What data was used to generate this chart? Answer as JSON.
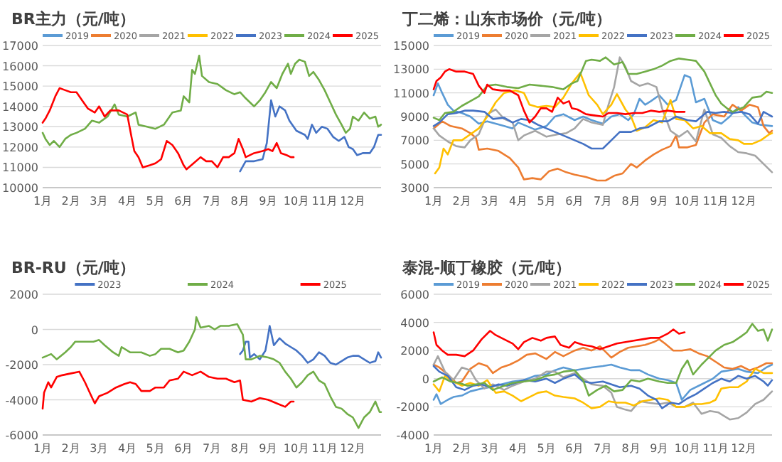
{
  "chart_data": [
    {
      "type": "line",
      "title": "BR主力（元/吨）",
      "xlim": [
        1,
        13
      ],
      "ylim": [
        10000,
        17000
      ],
      "yticks": [
        10000,
        11000,
        12000,
        13000,
        14000,
        15000,
        16000,
        17000
      ],
      "grid": "y",
      "legend": "top",
      "line_style": "solid",
      "marker": "none",
      "xticks": [
        {
          "value": 1,
          "label": "1月"
        },
        {
          "value": 2,
          "label": "2月"
        },
        {
          "value": 3,
          "label": "3月"
        },
        {
          "value": 4,
          "label": "4月"
        },
        {
          "value": 5,
          "label": "5月"
        },
        {
          "value": 6,
          "label": "6月"
        },
        {
          "value": 7,
          "label": "7月"
        },
        {
          "value": 8,
          "label": "8月"
        },
        {
          "value": 9,
          "label": "9月"
        },
        {
          "value": 10,
          "label": "10月"
        },
        {
          "value": 11,
          "label": "11月"
        },
        {
          "value": 12,
          "label": "12月"
        }
      ],
      "series": [
        {
          "name": "2019",
          "color": "#5b9bd5"
        },
        {
          "name": "2020",
          "color": "#ed7d31"
        },
        {
          "name": "2021",
          "color": "#a5a5a5"
        },
        {
          "name": "2022",
          "color": "#ffc000"
        },
        {
          "name": "2023",
          "color": "#4472c4",
          "x": [
            8.0,
            8.2,
            8.5,
            8.8,
            8.95,
            9.1,
            9.25,
            9.4,
            9.6,
            9.75,
            10.0,
            10.3,
            10.4,
            10.55,
            10.7,
            10.9,
            11.1,
            11.3,
            11.5,
            11.7,
            11.85,
            12.0,
            12.15,
            12.35,
            12.6,
            12.75,
            12.9,
            13.0
          ],
          "values": [
            10800,
            11300,
            11300,
            11400,
            12200,
            14300,
            13500,
            14000,
            13800,
            13300,
            12800,
            12600,
            12400,
            13100,
            12700,
            13000,
            12900,
            12500,
            12300,
            12500,
            12000,
            11900,
            11600,
            11700,
            11700,
            12000,
            12600,
            12600
          ]
        },
        {
          "name": "2024",
          "color": "#70ad47",
          "x": [
            1.0,
            1.1,
            1.25,
            1.4,
            1.6,
            1.8,
            2.0,
            2.2,
            2.5,
            2.75,
            3.0,
            3.3,
            3.55,
            3.7,
            4.0,
            4.3,
            4.4,
            4.7,
            5.0,
            5.3,
            5.6,
            5.9,
            6.0,
            6.2,
            6.3,
            6.4,
            6.55,
            6.65,
            6.9,
            7.2,
            7.5,
            7.8,
            8.0,
            8.2,
            8.5,
            8.7,
            8.9,
            9.1,
            9.3,
            9.5,
            9.7,
            9.8,
            9.95,
            10.1,
            10.3,
            10.45,
            10.6,
            10.8,
            11.0,
            11.2,
            11.4,
            11.6,
            11.75,
            11.9,
            12.0,
            12.2,
            12.4,
            12.6,
            12.8,
            12.9,
            13.0
          ],
          "values": [
            12700,
            12400,
            12100,
            12300,
            12000,
            12400,
            12600,
            12700,
            12900,
            13300,
            13200,
            13500,
            14100,
            13600,
            13500,
            13700,
            13100,
            13000,
            12900,
            13100,
            13700,
            13800,
            14500,
            14200,
            15800,
            15600,
            16500,
            15500,
            15200,
            15100,
            14800,
            14600,
            14700,
            14400,
            14000,
            14300,
            14700,
            15200,
            14900,
            15600,
            16100,
            15600,
            16100,
            16300,
            16200,
            15500,
            15700,
            15300,
            14800,
            14200,
            13600,
            13100,
            12700,
            12900,
            13500,
            13300,
            13700,
            13400,
            13500,
            13000,
            13100
          ]
        },
        {
          "name": "2025",
          "color": "#ff0000",
          "x": [
            1.0,
            1.1,
            1.25,
            1.45,
            1.6,
            1.8,
            2.0,
            2.2,
            2.4,
            2.6,
            2.85,
            3.0,
            3.2,
            3.4,
            3.7,
            4.0,
            4.15,
            4.25,
            4.4,
            4.55,
            4.8,
            5.0,
            5.2,
            5.4,
            5.6,
            5.8,
            6.0,
            6.1,
            6.35,
            6.6,
            6.8,
            7.0,
            7.2,
            7.4,
            7.6,
            7.8,
            7.95,
            8.1,
            8.2,
            8.5,
            8.8,
            9.0,
            9.15,
            9.3,
            9.45,
            9.65,
            9.8,
            9.9
          ],
          "values": [
            13200,
            13400,
            13800,
            14500,
            14900,
            14800,
            14700,
            14700,
            14300,
            13900,
            13700,
            14000,
            13500,
            13800,
            13800,
            13600,
            12500,
            11800,
            11500,
            11000,
            11100,
            11200,
            11400,
            12300,
            12100,
            11700,
            11100,
            10900,
            11200,
            11500,
            11300,
            11300,
            11000,
            11500,
            11500,
            11700,
            12400,
            11900,
            11500,
            11700,
            11800,
            11900,
            11800,
            12200,
            11700,
            11600,
            11500,
            11500
          ]
        }
      ]
    },
    {
      "type": "line",
      "title": "丁二烯：山东市场价（元/吨）",
      "xlim": [
        1,
        13
      ],
      "ylim": [
        3000,
        15000
      ],
      "yticks": [
        3000,
        5000,
        7000,
        9000,
        11000,
        13000,
        15000
      ],
      "grid": "y",
      "legend": "top",
      "line_style": "solid",
      "marker": "none",
      "xticks": [
        {
          "value": 1,
          "label": "1月"
        },
        {
          "value": 2,
          "label": "2月"
        },
        {
          "value": 3,
          "label": "3月"
        },
        {
          "value": 4,
          "label": "4月"
        },
        {
          "value": 5,
          "label": "5月"
        },
        {
          "value": 6,
          "label": "6月"
        },
        {
          "value": 7,
          "label": "7月"
        },
        {
          "value": 8,
          "label": "8月"
        },
        {
          "value": 9,
          "label": "9月"
        },
        {
          "value": 10,
          "label": "10月"
        },
        {
          "value": 11,
          "label": "11月"
        },
        {
          "value": 12,
          "label": "12月"
        }
      ],
      "series": [
        {
          "name": "2019",
          "color": "#5b9bd5",
          "x": [
            1.0,
            1.15,
            1.3,
            1.5,
            1.7,
            2.0,
            2.3,
            2.6,
            2.9,
            3.2,
            3.5,
            3.8,
            4.0,
            4.3,
            4.6,
            5.0,
            5.3,
            5.6,
            6.0,
            6.3,
            6.6,
            7.0,
            7.3,
            7.6,
            7.9,
            8.1,
            8.3,
            8.5,
            8.7,
            9.0,
            9.3,
            9.6,
            9.9,
            10.1,
            10.3,
            10.6,
            10.9,
            11.2,
            11.5,
            11.8,
            12.0,
            12.3,
            12.6,
            13.0
          ],
          "values": [
            10800,
            11800,
            11000,
            10000,
            9500,
            9300,
            9000,
            8400,
            8600,
            8400,
            8200,
            8000,
            8500,
            8200,
            7900,
            8200,
            9000,
            9200,
            8700,
            9000,
            8700,
            8400,
            9000,
            9200,
            8700,
            9200,
            10500,
            10000,
            10300,
            10800,
            10000,
            10400,
            12500,
            12300,
            10200,
            10500,
            8700,
            8400,
            9000,
            9800,
            9200,
            8500,
            8300,
            8200
          ]
        },
        {
          "name": "2020",
          "color": "#ed7d31",
          "x": [
            1.0,
            1.3,
            1.6,
            2.0,
            2.3,
            2.5,
            2.6,
            2.9,
            3.3,
            3.7,
            4.0,
            4.2,
            4.5,
            4.8,
            5.1,
            5.4,
            5.7,
            6.0,
            6.4,
            6.8,
            7.1,
            7.4,
            7.7,
            8.0,
            8.2,
            8.5,
            8.8,
            9.1,
            9.4,
            9.6,
            9.7,
            10.0,
            10.3,
            10.6,
            10.9,
            11.3,
            11.6,
            11.9,
            12.2,
            12.5,
            12.7,
            12.9,
            13.0
          ],
          "values": [
            8000,
            8600,
            8200,
            8000,
            7600,
            7200,
            6200,
            6300,
            6100,
            5500,
            4700,
            3700,
            3800,
            3700,
            4400,
            4600,
            4300,
            4100,
            3900,
            3600,
            3600,
            4000,
            4200,
            5000,
            4700,
            5300,
            5800,
            6200,
            6500,
            7400,
            6400,
            6400,
            6600,
            8500,
            9200,
            9000,
            10000,
            9500,
            10000,
            9800,
            8200,
            7600,
            7800
          ]
        },
        {
          "name": "2021",
          "color": "#a5a5a5",
          "x": [
            1.0,
            1.2,
            1.5,
            1.8,
            2.1,
            2.3,
            2.6,
            2.9,
            3.2,
            3.5,
            3.8,
            4.0,
            4.2,
            4.6,
            5.0,
            5.4,
            5.7,
            6.0,
            6.3,
            6.6,
            7.0,
            7.2,
            7.4,
            7.6,
            7.8,
            8.0,
            8.3,
            8.6,
            8.9,
            9.1,
            9.4,
            9.7,
            10.0,
            10.3,
            10.6,
            10.9,
            11.2,
            11.5,
            11.8,
            12.1,
            12.4,
            12.7,
            13.0
          ],
          "values": [
            8000,
            7400,
            6900,
            6500,
            6400,
            7000,
            7500,
            9200,
            9600,
            8800,
            8500,
            7000,
            7400,
            7800,
            7300,
            7500,
            7600,
            8000,
            8800,
            8500,
            8300,
            10000,
            11500,
            14000,
            13200,
            12000,
            11600,
            11800,
            11500,
            9700,
            7800,
            7300,
            7800,
            6900,
            9600,
            7500,
            7200,
            6500,
            6000,
            5900,
            5700,
            5000,
            4300
          ]
        },
        {
          "name": "2022",
          "color": "#ffc000",
          "x": [
            1.05,
            1.2,
            1.35,
            1.5,
            1.7,
            2.0,
            2.3,
            2.6,
            2.9,
            3.2,
            3.5,
            3.9,
            4.2,
            4.4,
            4.7,
            5.0,
            5.3,
            5.6,
            5.9,
            6.2,
            6.5,
            6.8,
            7.0,
            7.3,
            7.5,
            7.8,
            8.0,
            8.2,
            8.5,
            8.8,
            9.1,
            9.4,
            9.6,
            9.9,
            10.2,
            10.5,
            10.8,
            11.2,
            11.5,
            11.8,
            12.0,
            12.3,
            12.6,
            12.9,
            13.0
          ],
          "values": [
            4200,
            4700,
            6300,
            5800,
            7000,
            7000,
            7500,
            8000,
            9000,
            10200,
            11000,
            11200,
            11000,
            10000,
            9800,
            9900,
            9800,
            10600,
            11800,
            12700,
            10800,
            10000,
            9200,
            10000,
            10900,
            9600,
            9000,
            7800,
            8100,
            8700,
            8500,
            10400,
            8800,
            8700,
            8000,
            8200,
            7600,
            7600,
            7100,
            7000,
            6700,
            6700,
            7000,
            7500,
            7600
          ]
        },
        {
          "name": "2023",
          "color": "#4472c4",
          "x": [
            1.0,
            1.2,
            1.5,
            1.8,
            2.1,
            2.4,
            2.8,
            3.1,
            3.5,
            3.8,
            4.1,
            4.4,
            4.7,
            5.0,
            5.3,
            5.6,
            6.0,
            6.3,
            6.6,
            7.0,
            7.3,
            7.6,
            8.0,
            8.3,
            8.6,
            9.0,
            9.3,
            9.6,
            10.0,
            10.3,
            10.7,
            11.0,
            11.3,
            11.6,
            11.9,
            12.2,
            12.5,
            12.7,
            12.85,
            13.0
          ],
          "values": [
            8200,
            8500,
            9200,
            9300,
            9500,
            9500,
            9400,
            8800,
            8900,
            8500,
            8800,
            8700,
            8300,
            8000,
            7700,
            7400,
            7000,
            6700,
            6300,
            6300,
            7000,
            7700,
            7700,
            8000,
            8100,
            8600,
            8600,
            9000,
            8700,
            8600,
            9400,
            9300,
            9400,
            9300,
            9400,
            9200,
            8400,
            9400,
            9200,
            9000
          ]
        },
        {
          "name": "2024",
          "color": "#70ad47",
          "x": [
            1.0,
            1.2,
            1.4,
            1.7,
            2.0,
            2.3,
            2.6,
            2.9,
            3.2,
            3.6,
            4.0,
            4.4,
            4.8,
            5.2,
            5.6,
            5.9,
            6.1,
            6.4,
            6.6,
            6.9,
            7.1,
            7.4,
            7.7,
            7.9,
            8.2,
            8.5,
            8.8,
            9.1,
            9.4,
            9.7,
            10.0,
            10.3,
            10.6,
            10.8,
            11.0,
            11.2,
            11.4,
            11.6,
            11.8,
            12.0,
            12.3,
            12.6,
            12.8,
            13.0
          ],
          "values": [
            8900,
            8700,
            9300,
            9400,
            9900,
            10300,
            10700,
            11600,
            11700,
            11500,
            11400,
            11700,
            11600,
            11500,
            11300,
            11800,
            12000,
            13700,
            13800,
            13700,
            14000,
            13400,
            13600,
            12600,
            12600,
            12800,
            13000,
            13300,
            13700,
            13900,
            13800,
            13700,
            12800,
            11800,
            10800,
            10100,
            9700,
            9400,
            9600,
            9800,
            10600,
            10700,
            11100,
            11000
          ]
        },
        {
          "name": "2025",
          "color": "#ff0000",
          "x": [
            1.0,
            1.1,
            1.25,
            1.4,
            1.55,
            1.8,
            2.1,
            2.4,
            2.6,
            2.8,
            2.9,
            3.1,
            3.4,
            3.7,
            4.0,
            4.2,
            4.4,
            4.6,
            4.8,
            5.0,
            5.2,
            5.4,
            5.6,
            5.8,
            5.9,
            6.1,
            6.4,
            6.7,
            7.0,
            7.2,
            7.5,
            7.8,
            8.1,
            8.4,
            8.7,
            9.0,
            9.3,
            9.6,
            9.9
          ],
          "values": [
            11300,
            12000,
            12300,
            12800,
            13000,
            12800,
            12800,
            12600,
            11600,
            11000,
            11700,
            11300,
            11200,
            11200,
            10800,
            9500,
            8500,
            9000,
            9700,
            9700,
            9400,
            10600,
            10100,
            10300,
            9700,
            9600,
            9200,
            9100,
            9000,
            9300,
            9300,
            9200,
            9300,
            9300,
            9500,
            9400,
            9500,
            9400,
            9400
          ]
        }
      ]
    },
    {
      "type": "line",
      "title": "BR-RU（元/吨）",
      "xlim": [
        1,
        13
      ],
      "ylim": [
        -6000,
        2000
      ],
      "yticks": [
        -6000,
        -4000,
        -2000,
        0,
        2000
      ],
      "grid": "y",
      "legend": "top",
      "line_style": "solid",
      "marker": "none",
      "xticks": [
        {
          "value": 1,
          "label": "1月"
        },
        {
          "value": 2,
          "label": "2月"
        },
        {
          "value": 3,
          "label": "3月"
        },
        {
          "value": 4,
          "label": "4月"
        },
        {
          "value": 5,
          "label": "5月"
        },
        {
          "value": 6,
          "label": "6月"
        },
        {
          "value": 7,
          "label": "7月"
        },
        {
          "value": 8,
          "label": "8月"
        },
        {
          "value": 9,
          "label": "9月"
        },
        {
          "value": 10,
          "label": "10月"
        },
        {
          "value": 11,
          "label": "11月"
        },
        {
          "value": 12,
          "label": "12月"
        }
      ],
      "series": [
        {
          "name": "2023",
          "color": "#4472c4",
          "x": [
            8.0,
            8.1,
            8.2,
            8.3,
            8.35,
            8.5,
            8.7,
            8.9,
            9.0,
            9.05,
            9.2,
            9.4,
            9.6,
            9.8,
            10.0,
            10.2,
            10.4,
            10.6,
            10.8,
            11.0,
            11.2,
            11.4,
            11.6,
            11.8,
            12.0,
            12.2,
            12.4,
            12.6,
            12.8,
            12.9,
            13.0
          ],
          "values": [
            -1400,
            -1200,
            -700,
            -700,
            -1600,
            -1400,
            -1700,
            -1200,
            -300,
            200,
            -900,
            -500,
            -800,
            -1000,
            -1200,
            -1500,
            -1900,
            -1700,
            -1300,
            -1500,
            -1900,
            -2000,
            -1800,
            -1600,
            -1500,
            -1500,
            -1700,
            -1900,
            -1800,
            -1300,
            -1600
          ]
        },
        {
          "name": "2024",
          "color": "#70ad47",
          "x": [
            1.0,
            1.3,
            1.5,
            1.8,
            2.0,
            2.15,
            2.5,
            2.8,
            3.0,
            3.2,
            3.5,
            3.7,
            3.8,
            4.1,
            4.5,
            4.8,
            5.0,
            5.2,
            5.5,
            5.8,
            6.0,
            6.2,
            6.4,
            6.45,
            6.6,
            6.9,
            7.1,
            7.3,
            7.6,
            7.9,
            8.1,
            8.2,
            8.4,
            8.7,
            9.0,
            9.2,
            9.4,
            9.6,
            9.8,
            10.0,
            10.2,
            10.4,
            10.6,
            10.8,
            11.0,
            11.2,
            11.4,
            11.6,
            11.8,
            12.0,
            12.2,
            12.4,
            12.6,
            12.8,
            12.95,
            13.0
          ],
          "values": [
            -1600,
            -1400,
            -1700,
            -1300,
            -1000,
            -700,
            -700,
            -700,
            -600,
            -900,
            -1300,
            -1500,
            -1000,
            -1300,
            -1300,
            -1500,
            -1400,
            -1100,
            -1100,
            -1300,
            -1200,
            -700,
            0,
            700,
            100,
            200,
            0,
            200,
            200,
            300,
            -300,
            -1700,
            -1700,
            -1500,
            -1600,
            -1700,
            -1900,
            -2400,
            -2800,
            -3300,
            -3000,
            -2600,
            -2400,
            -2900,
            -3100,
            -3800,
            -4400,
            -4500,
            -4800,
            -5000,
            -5600,
            -5000,
            -4700,
            -4100,
            -4700,
            -4700
          ]
        },
        {
          "name": "2025",
          "color": "#ff0000",
          "x": [
            1.0,
            1.05,
            1.2,
            1.3,
            1.5,
            1.7,
            2.0,
            2.3,
            2.5,
            2.7,
            2.85,
            3.0,
            3.3,
            3.6,
            3.9,
            4.1,
            4.3,
            4.5,
            4.8,
            5.0,
            5.3,
            5.5,
            5.8,
            6.0,
            6.3,
            6.6,
            6.9,
            7.2,
            7.5,
            7.8,
            8.0,
            8.1,
            8.4,
            8.7,
            9.0,
            9.3,
            9.6,
            9.8,
            9.9
          ],
          "values": [
            -4500,
            -3600,
            -3000,
            -3300,
            -2700,
            -2600,
            -2500,
            -2400,
            -3000,
            -3700,
            -4200,
            -3800,
            -3600,
            -3300,
            -3100,
            -3000,
            -3100,
            -3500,
            -3500,
            -3300,
            -3300,
            -2900,
            -2800,
            -2400,
            -2600,
            -2400,
            -2700,
            -2800,
            -2800,
            -3000,
            -2900,
            -4000,
            -4100,
            -3900,
            -4000,
            -4200,
            -4400,
            -4100,
            -4100
          ]
        }
      ]
    },
    {
      "type": "line",
      "title": "泰混-顺丁橡胶（元/吨）",
      "xlim": [
        1,
        13
      ],
      "ylim": [
        -4000,
        6000
      ],
      "yticks": [
        -4000,
        -2000,
        0,
        2000,
        4000,
        6000
      ],
      "grid": "y",
      "legend": "top",
      "line_style": "solid",
      "marker": "none",
      "xticks": [
        {
          "value": 1,
          "label": "1月"
        },
        {
          "value": 2,
          "label": "2月"
        },
        {
          "value": 3,
          "label": "3月"
        },
        {
          "value": 4,
          "label": "4月"
        },
        {
          "value": 5,
          "label": "5月"
        },
        {
          "value": 6,
          "label": "6月"
        },
        {
          "value": 7,
          "label": "7月"
        },
        {
          "value": 8,
          "label": "8月"
        },
        {
          "value": 9,
          "label": "9月"
        },
        {
          "value": 10,
          "label": "10月"
        },
        {
          "value": 11,
          "label": "11月"
        },
        {
          "value": 12,
          "label": "12月"
        }
      ],
      "series": [
        {
          "name": "2019",
          "color": "#5b9bd5",
          "x": [
            1.0,
            1.1,
            1.25,
            1.5,
            1.7,
            2.0,
            2.3,
            2.7,
            3.0,
            3.4,
            3.8,
            4.2,
            4.6,
            5.0,
            5.3,
            5.6,
            6.0,
            6.3,
            6.6,
            7.0,
            7.3,
            7.6,
            8.0,
            8.3,
            8.6,
            9.0,
            9.3,
            9.6,
            9.8,
            10.1,
            10.5,
            10.9,
            11.2,
            11.5,
            11.8,
            12.1,
            12.5,
            12.8,
            13.0
          ],
          "values": [
            -1500,
            -1100,
            -1800,
            -1500,
            -1300,
            -1200,
            -900,
            -700,
            -600,
            -400,
            -200,
            -100,
            200,
            300,
            600,
            800,
            600,
            700,
            800,
            900,
            1000,
            800,
            600,
            600,
            300,
            0,
            -100,
            -300,
            -1500,
            -800,
            -400,
            0,
            500,
            600,
            700,
            500,
            400,
            800,
            1000
          ]
        },
        {
          "name": "2020",
          "color": "#ed7d31",
          "x": [
            1.0,
            1.2,
            1.5,
            1.8,
            2.0,
            2.3,
            2.6,
            2.9,
            3.1,
            3.4,
            3.7,
            4.0,
            4.3,
            4.6,
            5.0,
            5.3,
            5.6,
            6.0,
            6.3,
            6.6,
            6.9,
            7.1,
            7.3,
            7.6,
            7.9,
            8.2,
            8.5,
            8.8,
            9.0,
            9.2,
            9.5,
            9.8,
            10.1,
            10.4,
            10.7,
            11.0,
            11.3,
            11.6,
            11.9,
            12.2,
            12.5,
            12.8,
            13.0
          ],
          "values": [
            1000,
            800,
            300,
            -300,
            -200,
            700,
            1100,
            900,
            400,
            800,
            1000,
            1300,
            1700,
            1800,
            1400,
            1900,
            1600,
            2000,
            2200,
            2000,
            2300,
            1900,
            1500,
            1900,
            2200,
            2300,
            2400,
            2600,
            2800,
            2500,
            2000,
            2000,
            2100,
            1800,
            1600,
            1200,
            800,
            700,
            900,
            600,
            800,
            1100,
            1100
          ]
        },
        {
          "name": "2021",
          "color": "#a5a5a5",
          "x": [
            1.0,
            1.15,
            1.4,
            1.7,
            2.0,
            2.3,
            2.5,
            2.8,
            3.1,
            3.5,
            3.8,
            4.2,
            4.6,
            5.0,
            5.3,
            5.6,
            6.0,
            6.3,
            6.6,
            7.0,
            7.3,
            7.5,
            7.8,
            8.0,
            8.3,
            8.6,
            9.0,
            9.3,
            9.6,
            9.9,
            10.2,
            10.5,
            10.8,
            11.1,
            11.5,
            11.8,
            12.1,
            12.4,
            12.7,
            13.0
          ],
          "values": [
            1000,
            1600,
            500,
            -100,
            800,
            600,
            -100,
            -700,
            -400,
            -800,
            -500,
            -200,
            0,
            500,
            500,
            100,
            400,
            0,
            -400,
            -500,
            -1000,
            -2000,
            -2200,
            -2300,
            -1600,
            -1700,
            -1800,
            -1700,
            -2000,
            -2000,
            -1700,
            -2500,
            -2300,
            -2400,
            -2900,
            -2800,
            -2400,
            -1800,
            -1500,
            -900
          ]
        },
        {
          "name": "2022",
          "color": "#ffc000",
          "x": [
            1.0,
            1.2,
            1.4,
            1.7,
            2.0,
            2.3,
            2.6,
            2.9,
            3.2,
            3.5,
            3.8,
            4.1,
            4.4,
            4.7,
            5.0,
            5.3,
            5.6,
            6.0,
            6.3,
            6.6,
            6.9,
            7.2,
            7.5,
            7.8,
            8.1,
            8.4,
            8.7,
            9.0,
            9.3,
            9.6,
            9.9,
            10.2,
            10.5,
            10.8,
            11.0,
            11.2,
            11.5,
            11.8,
            12.1,
            12.4,
            12.7,
            13.0
          ],
          "values": [
            -400,
            -900,
            200,
            -200,
            -500,
            -300,
            -500,
            -100,
            -1000,
            -900,
            -1200,
            -1600,
            -1300,
            -1000,
            -900,
            -1200,
            -1300,
            -1400,
            -1700,
            -2100,
            -2000,
            -1600,
            -1700,
            -1700,
            -1900,
            -1600,
            -1500,
            -1400,
            -1500,
            -2000,
            -2000,
            -1800,
            -1800,
            -1700,
            -1500,
            -700,
            -600,
            -600,
            -200,
            700,
            400,
            400
          ]
        },
        {
          "name": "2023",
          "color": "#4472c4",
          "x": [
            1.0,
            1.2,
            1.5,
            1.8,
            2.1,
            2.4,
            2.7,
            3.0,
            3.3,
            3.6,
            3.9,
            4.2,
            4.6,
            5.0,
            5.3,
            5.6,
            6.0,
            6.3,
            6.6,
            7.0,
            7.3,
            7.6,
            8.0,
            8.3,
            8.6,
            8.9,
            9.1,
            9.4,
            9.7,
            10.0,
            10.3,
            10.6,
            10.9,
            11.2,
            11.5,
            11.8,
            12.1,
            12.4,
            12.7,
            12.85,
            13.0
          ],
          "values": [
            900,
            500,
            200,
            -600,
            -800,
            -500,
            -400,
            -600,
            -400,
            -500,
            -300,
            -100,
            -200,
            0,
            -300,
            0,
            300,
            -200,
            -300,
            -200,
            -400,
            -600,
            -500,
            -700,
            -1200,
            -1500,
            -2100,
            -1700,
            -1800,
            -1400,
            -1100,
            -700,
            -300,
            0,
            -200,
            200,
            0,
            200,
            -200,
            -500,
            -100
          ]
        },
        {
          "name": "2024",
          "color": "#70ad47",
          "x": [
            1.0,
            1.3,
            1.6,
            1.9,
            2.2,
            2.5,
            2.8,
            3.1,
            3.5,
            3.8,
            4.2,
            4.6,
            5.0,
            5.3,
            5.6,
            6.0,
            6.3,
            6.5,
            6.8,
            7.1,
            7.4,
            7.7,
            8.0,
            8.3,
            8.6,
            9.0,
            9.3,
            9.6,
            9.8,
            10.0,
            10.2,
            10.5,
            10.8,
            11.0,
            11.3,
            11.6,
            11.9,
            12.1,
            12.3,
            12.5,
            12.7,
            12.85,
            13.0
          ],
          "values": [
            -200,
            100,
            -200,
            -300,
            -500,
            -400,
            -300,
            -800,
            -500,
            -300,
            -200,
            -100,
            200,
            300,
            500,
            600,
            -100,
            -1200,
            -800,
            -500,
            -900,
            -800,
            -100,
            -200,
            0,
            -200,
            -300,
            -300,
            700,
            1300,
            300,
            1000,
            1600,
            2000,
            2400,
            2600,
            3000,
            3300,
            3900,
            3400,
            3500,
            2700,
            3500
          ]
        },
        {
          "name": "2025",
          "color": "#ff0000",
          "x": [
            1.0,
            1.1,
            1.3,
            1.5,
            1.8,
            2.1,
            2.4,
            2.7,
            3.0,
            3.2,
            3.5,
            3.8,
            4.0,
            4.2,
            4.5,
            4.8,
            5.0,
            5.3,
            5.5,
            5.8,
            6.0,
            6.3,
            6.6,
            6.9,
            7.2,
            7.5,
            7.8,
            8.1,
            8.4,
            8.7,
            9.0,
            9.3,
            9.5,
            9.7,
            9.9
          ],
          "values": [
            3300,
            2400,
            2000,
            1700,
            1700,
            1600,
            2000,
            2800,
            3400,
            3100,
            2800,
            2500,
            2100,
            2600,
            2900,
            2700,
            2900,
            3000,
            2400,
            2200,
            2600,
            2400,
            2300,
            2100,
            2300,
            2500,
            2600,
            2700,
            2800,
            2900,
            2900,
            3200,
            3500,
            3200,
            3300
          ]
        }
      ]
    }
  ]
}
